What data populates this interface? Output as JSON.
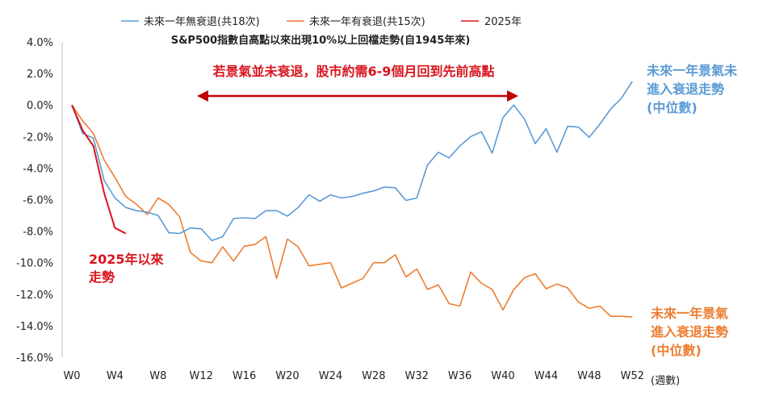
{
  "chart_data": {
    "type": "line",
    "title": "S&P500指數自高點以來出現10%以上回檔走勢(自1945年來)",
    "xlabel": "(週數)",
    "ylabel": "",
    "ylim": [
      -16,
      4
    ],
    "y_ticks": [
      4,
      2,
      0,
      -2,
      -4,
      -6,
      -8,
      -10,
      -12,
      -14,
      -16
    ],
    "y_tick_labels": [
      "4.0%",
      "2.0%",
      "0.0%",
      "-2.0%",
      "-4.0%",
      "-6.0%",
      "-8.0%",
      "-10.0%",
      "-12.0%",
      "-14.0%",
      "-16.0%"
    ],
    "x_ticks": [
      0,
      4,
      8,
      12,
      16,
      20,
      24,
      28,
      32,
      36,
      40,
      44,
      48,
      52
    ],
    "x_tick_labels": [
      "W0",
      "W4",
      "W8",
      "W12",
      "W16",
      "W20",
      "W24",
      "W28",
      "W32",
      "W36",
      "W40",
      "W44",
      "W48",
      "W52"
    ],
    "grid": false,
    "legend_position": "top",
    "series": [
      {
        "name": "未來一年無衰退(共18次)",
        "color": "#5b9bd5",
        "x": [
          0,
          1,
          2,
          3,
          4,
          5,
          6,
          7,
          8,
          9,
          10,
          11,
          12,
          13,
          14,
          15,
          16,
          17,
          18,
          19,
          20,
          21,
          22,
          23,
          24,
          25,
          26,
          27,
          28,
          29,
          30,
          31,
          32,
          33,
          34,
          35,
          36,
          37,
          38,
          39,
          40,
          41,
          42,
          43,
          44,
          45,
          46,
          47,
          48,
          49,
          50,
          51,
          52
        ],
        "values": [
          0,
          -1.8,
          -2.1,
          -4.8,
          -5.9,
          -6.5,
          -6.7,
          -6.8,
          -7.0,
          -8.1,
          -8.15,
          -7.8,
          -7.85,
          -8.6,
          -8.35,
          -7.2,
          -7.15,
          -7.2,
          -6.7,
          -6.7,
          -7.05,
          -6.5,
          -5.7,
          -6.1,
          -5.7,
          -5.9,
          -5.8,
          -5.6,
          -5.45,
          -5.2,
          -5.25,
          -6.05,
          -5.9,
          -3.8,
          -3.0,
          -3.35,
          -2.6,
          -2.0,
          -1.7,
          -3.05,
          -0.8,
          0.0,
          -0.9,
          -2.45,
          -1.5,
          -3.0,
          -1.35,
          -1.4,
          -2.05,
          -1.2,
          -0.25,
          0.45,
          1.5
        ]
      },
      {
        "name": "未來一年有衰退(共15次)",
        "color": "#ed7d31",
        "x": [
          0,
          1,
          2,
          3,
          4,
          5,
          6,
          7,
          8,
          9,
          10,
          11,
          12,
          13,
          14,
          15,
          16,
          17,
          18,
          19,
          20,
          21,
          22,
          23,
          24,
          25,
          26,
          27,
          28,
          29,
          30,
          31,
          32,
          33,
          34,
          35,
          36,
          37,
          38,
          39,
          40,
          41,
          42,
          43,
          44,
          45,
          46,
          47,
          48,
          49,
          50,
          51,
          52
        ],
        "values": [
          0,
          -1.0,
          -1.8,
          -3.5,
          -4.6,
          -5.8,
          -6.3,
          -6.95,
          -5.9,
          -6.3,
          -7.1,
          -9.35,
          -9.9,
          -10.0,
          -9.0,
          -9.9,
          -8.95,
          -8.85,
          -8.35,
          -11.0,
          -8.5,
          -9.0,
          -10.2,
          -10.1,
          -10.0,
          -11.6,
          -11.3,
          -11.0,
          -10.0,
          -10.0,
          -9.5,
          -10.9,
          -10.4,
          -11.7,
          -11.4,
          -12.6,
          -12.75,
          -10.6,
          -11.3,
          -11.7,
          -13.0,
          -11.7,
          -10.95,
          -10.7,
          -11.65,
          -11.35,
          -11.6,
          -12.5,
          -12.9,
          -12.75,
          -13.4,
          -13.4,
          -13.45
        ]
      },
      {
        "name": "2025年",
        "color": "#d9141e",
        "x": [
          0,
          1,
          2,
          3,
          4,
          5
        ],
        "values": [
          0,
          -1.6,
          -2.6,
          -5.6,
          -7.8,
          -8.15
        ]
      }
    ]
  },
  "annotations": {
    "arrow_text": "若景氣並未衰退，股市約需6-9個月回到先前高點",
    "label_2025": [
      "2025年以來",
      "走勢"
    ],
    "label_no_recession": [
      "未來一年景氣未",
      "進入衰退走勢",
      "(中位數)"
    ],
    "label_recession": [
      "未來一年景氣",
      "進入衰退走勢",
      "(中位數)"
    ]
  }
}
